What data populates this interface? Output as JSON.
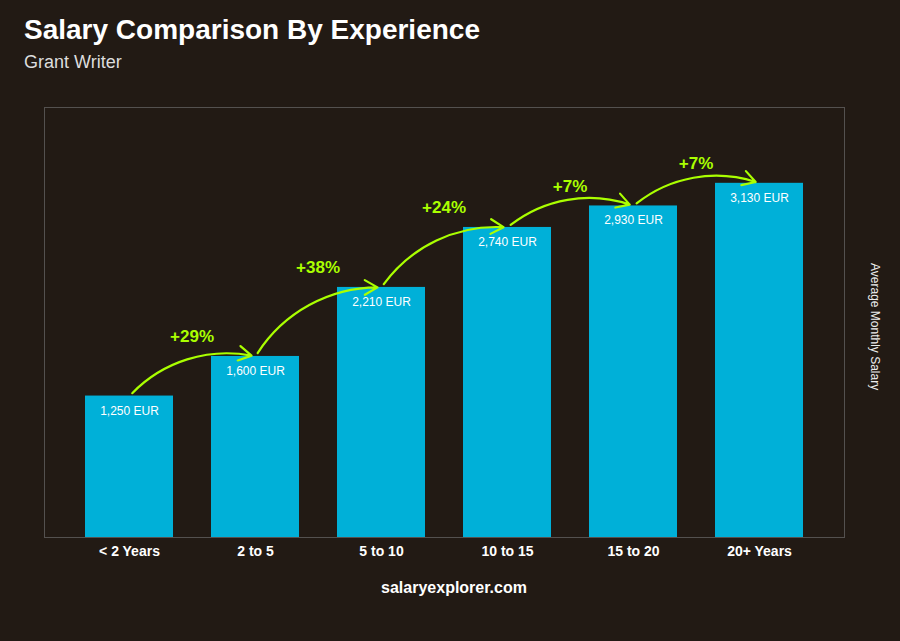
{
  "chart_data": {
    "type": "bar",
    "title": "Salary Comparison By Experience",
    "subtitle": "Grant Writer",
    "ylabel": "Average Monthly Salary",
    "caption": "salaryexplorer.com",
    "categories": [
      "< 2 Years",
      "2 to 5",
      "5 to 10",
      "10 to 15",
      "15 to 20",
      "20+ Years"
    ],
    "values": [
      1250,
      1600,
      2210,
      2740,
      2930,
      3130
    ],
    "value_labels": [
      "1,250 EUR",
      "1,600 EUR",
      "2,210 EUR",
      "2,740 EUR",
      "2,930 EUR",
      "3,130 EUR"
    ],
    "data_labels": true,
    "color": "#00b0d8",
    "ylim": [
      0,
      3800
    ],
    "grid": false,
    "tick_labels": "x",
    "annotations": [
      {
        "category": "2 to 5",
        "text": "+29%",
        "color": "#aaff00"
      },
      {
        "category": "5 to 10",
        "text": "+38%",
        "color": "#aaff00"
      },
      {
        "category": "10 to 15",
        "text": "+24%",
        "color": "#aaff00"
      },
      {
        "category": "15 to 20",
        "text": "+7%",
        "color": "#aaff00"
      },
      {
        "category": "20+ Years",
        "text": "+7%",
        "color": "#aaff00"
      }
    ]
  }
}
